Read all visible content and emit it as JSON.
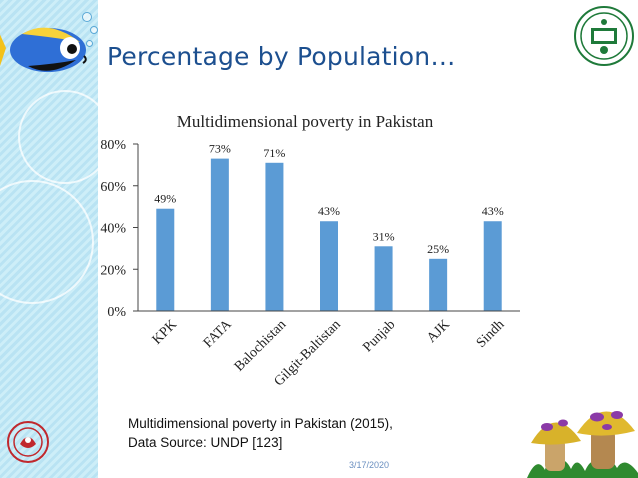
{
  "slide": {
    "title": "Percentage by Population…",
    "caption_line1": "Multidimensional poverty in Pakistan (2015),",
    "caption_line2": "Data Source: UNDP [123]",
    "date": "3/17/2020"
  },
  "icons": [
    "fish-icon",
    "bubble-icon",
    "department-logo-icon",
    "seal-icon",
    "mushroom-icon"
  ],
  "colors": {
    "bar": "#5b9bd5",
    "title": "#1c4f8f",
    "strip": "#b9e3f3"
  },
  "chart_data": {
    "type": "bar",
    "title": "Multidimensional poverty in Pakistan",
    "categories": [
      "KPK",
      "FATA",
      "Balochistan",
      "Gilgit-Baltistan",
      "Punjab",
      "AJK",
      "Sindh"
    ],
    "values": [
      49,
      73,
      71,
      43,
      31,
      25,
      43
    ],
    "data_labels": [
      "49%",
      "73%",
      "71%",
      "43%",
      "31%",
      "25%",
      "43%"
    ],
    "y_ticks": [
      "0%",
      "20%",
      "40%",
      "60%",
      "80%"
    ],
    "ylim": [
      0,
      80
    ],
    "grid": false,
    "legend": "none"
  }
}
